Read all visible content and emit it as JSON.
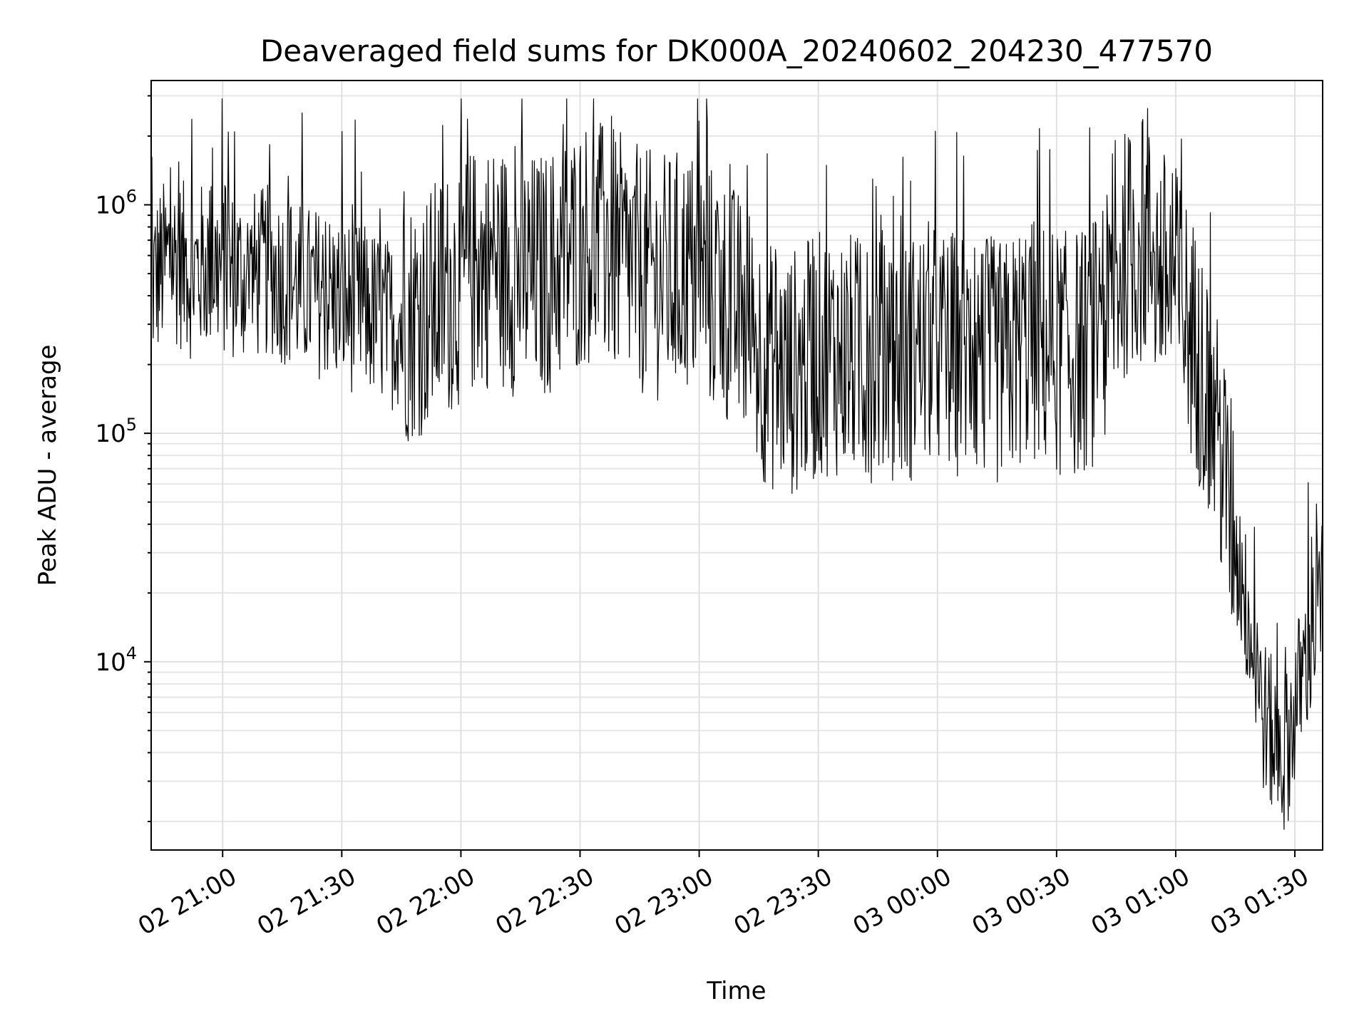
{
  "chart_data": {
    "type": "line",
    "title": "Deaveraged field sums for DK000A_20240602_204230_477570",
    "xlabel": "Time",
    "ylabel": "Peak ADU - average",
    "yscale": "log",
    "grid": true,
    "xlim": [
      "2024-06-02 20:42",
      "2024-06-03 01:37"
    ],
    "ylim": [
      1500,
      3500000
    ],
    "x_ticks": [
      {
        "time": "2024-06-02 21:00",
        "label": "02 21:00"
      },
      {
        "time": "2024-06-02 21:30",
        "label": "02 21:30"
      },
      {
        "time": "2024-06-02 22:00",
        "label": "02 22:00"
      },
      {
        "time": "2024-06-02 22:30",
        "label": "02 22:30"
      },
      {
        "time": "2024-06-02 23:00",
        "label": "02 23:00"
      },
      {
        "time": "2024-06-02 23:30",
        "label": "02 23:30"
      },
      {
        "time": "2024-06-03 00:00",
        "label": "03 00:00"
      },
      {
        "time": "2024-06-03 00:30",
        "label": "03 00:30"
      },
      {
        "time": "2024-06-03 01:00",
        "label": "03 01:00"
      },
      {
        "time": "2024-06-03 01:30",
        "label": "03 01:30"
      }
    ],
    "y_ticks": [
      {
        "value": 10000,
        "base": "10",
        "exp": "4"
      },
      {
        "value": 100000,
        "base": "10",
        "exp": "5"
      },
      {
        "value": 1000000,
        "base": "10",
        "exp": "6"
      }
    ],
    "series": [
      {
        "color": "#000000",
        "x": [
          "2024-06-02 20:42",
          "2024-06-02 20:47",
          "2024-06-02 20:52",
          "2024-06-02 20:57",
          "2024-06-02 21:02",
          "2024-06-02 21:07",
          "2024-06-02 21:12",
          "2024-06-02 21:17",
          "2024-06-02 21:22",
          "2024-06-02 21:27",
          "2024-06-02 21:32",
          "2024-06-02 21:37",
          "2024-06-02 21:42",
          "2024-06-02 21:47",
          "2024-06-02 21:52",
          "2024-06-02 21:57",
          "2024-06-02 22:02",
          "2024-06-02 22:07",
          "2024-06-02 22:12",
          "2024-06-02 22:17",
          "2024-06-02 22:22",
          "2024-06-02 22:27",
          "2024-06-02 22:32",
          "2024-06-02 22:37",
          "2024-06-02 22:42",
          "2024-06-02 22:47",
          "2024-06-02 22:52",
          "2024-06-02 22:57",
          "2024-06-02 23:02",
          "2024-06-02 23:07",
          "2024-06-02 23:12",
          "2024-06-02 23:17",
          "2024-06-02 23:22",
          "2024-06-02 23:27",
          "2024-06-02 23:32",
          "2024-06-02 23:37",
          "2024-06-02 23:42",
          "2024-06-02 23:47",
          "2024-06-02 23:52",
          "2024-06-02 23:57",
          "2024-06-03 00:02",
          "2024-06-03 00:07",
          "2024-06-03 00:12",
          "2024-06-03 00:17",
          "2024-06-03 00:22",
          "2024-06-03 00:27",
          "2024-06-03 00:32",
          "2024-06-03 00:37",
          "2024-06-03 00:42",
          "2024-06-03 00:47",
          "2024-06-03 00:52",
          "2024-06-03 00:57",
          "2024-06-03 01:02",
          "2024-06-03 01:07",
          "2024-06-03 01:12",
          "2024-06-03 01:17",
          "2024-06-03 01:22",
          "2024-06-03 01:27",
          "2024-06-03 01:32",
          "2024-06-03 01:37"
        ],
        "y": [
          450000,
          600000,
          500000,
          550000,
          500000,
          480000,
          520000,
          450000,
          420000,
          400000,
          360000,
          340000,
          300000,
          320000,
          350000,
          420000,
          500000,
          550000,
          520000,
          480000,
          500000,
          600000,
          700000,
          650000,
          550000,
          500000,
          480000,
          520000,
          450000,
          380000,
          300000,
          200000,
          180000,
          200000,
          230000,
          220000,
          210000,
          230000,
          200000,
          250000,
          220000,
          230000,
          210000,
          200000,
          260000,
          240000,
          220000,
          230000,
          280000,
          600000,
          700000,
          500000,
          350000,
          180000,
          70000,
          20000,
          6000,
          3500,
          9000,
          20000
        ]
      }
    ]
  }
}
